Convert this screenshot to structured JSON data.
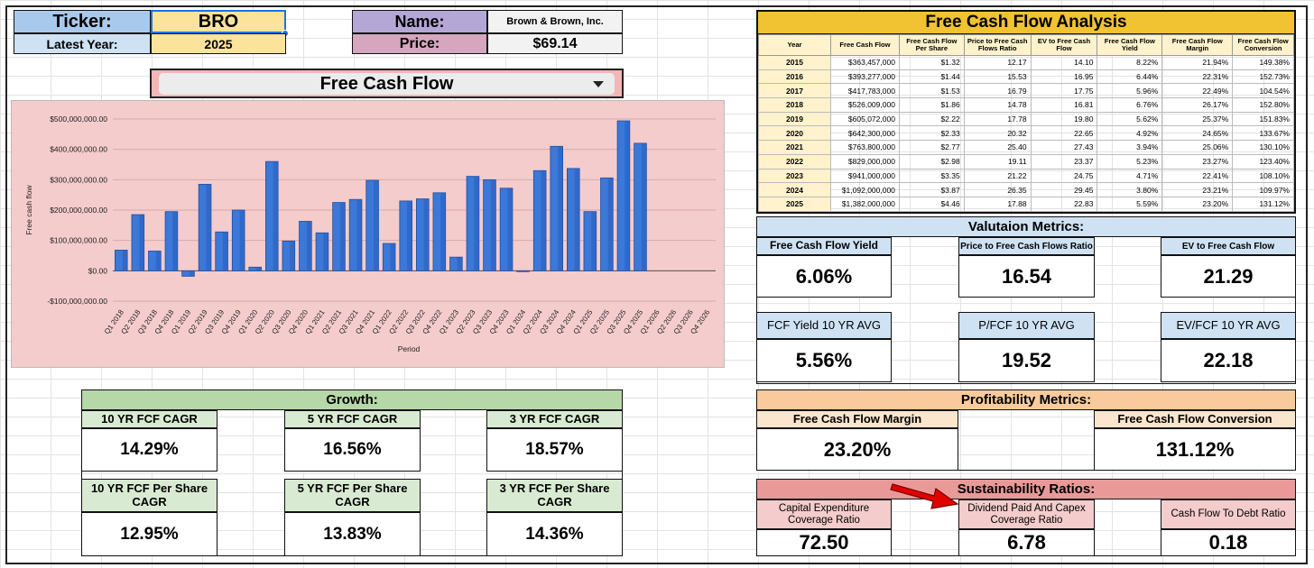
{
  "header": {
    "ticker_label": "Ticker:",
    "ticker_value": "BRO",
    "latest_year_label": "Latest Year:",
    "latest_year_value": "2025",
    "name_label": "Name:",
    "name_value": "Brown & Brown, Inc.",
    "price_label": "Price:",
    "price_value": "$69.14"
  },
  "dropdown": {
    "selected": "Free Cash Flow"
  },
  "chart_data": {
    "type": "bar",
    "title": "",
    "xlabel": "Period",
    "ylabel": "Free cash flow",
    "ylim": [
      -100000000,
      500000000
    ],
    "yticks": [
      500000000,
      400000000,
      300000000,
      200000000,
      100000000,
      0,
      -100000000
    ],
    "ytick_labels": [
      "$500,000,000.00",
      "$400,000,000.00",
      "$300,000,000.00",
      "$200,000,000.00",
      "$100,000,000.00",
      "$0.00",
      "-$100,000,000.00"
    ],
    "categories": [
      "Q1 2018",
      "Q2 2018",
      "Q3 2018",
      "Q4 2018",
      "Q1 2019",
      "Q2 2019",
      "Q3 2019",
      "Q4 2019",
      "Q1 2020",
      "Q2 2020",
      "Q3 2020",
      "Q4 2020",
      "Q1 2021",
      "Q2 2021",
      "Q3 2021",
      "Q4 2021",
      "Q1 2022",
      "Q2 2022",
      "Q3 2022",
      "Q4 2022",
      "Q1 2023",
      "Q2 2023",
      "Q3 2023",
      "Q4 2023",
      "Q1 2024",
      "Q2 2024",
      "Q3 2024",
      "Q4 2024",
      "Q1 2025",
      "Q2 2025",
      "Q3 2025",
      "Q4 2025",
      "Q1 2026",
      "Q2 2026",
      "Q3 2026",
      "Q4 2026"
    ],
    "values": [
      68000000,
      185000000,
      65000000,
      195000000,
      -18000000,
      285000000,
      128000000,
      200000000,
      12000000,
      360000000,
      98000000,
      163000000,
      125000000,
      225000000,
      235000000,
      298000000,
      90000000,
      230000000,
      237000000,
      257000000,
      45000000,
      311000000,
      300000000,
      272000000,
      0,
      330000000,
      410000000,
      337000000,
      195000000,
      306000000,
      494000000,
      420000000,
      null,
      null,
      null,
      null
    ],
    "bar_color": "#3c78d8"
  },
  "fcf_table": {
    "title": "Free Cash Flow Analysis",
    "headers": [
      "Year",
      "Free Cash Flow",
      "Free Cash Flow Per Share",
      "Price to Free Cash Flows Ratio",
      "EV to Free Cash Flow",
      "Free Cash Flow Yield",
      "Free Cash Flow Margin",
      "Free Cash Flow Conversion"
    ],
    "rows": [
      [
        "2015",
        "$363,457,000",
        "$1.32",
        "12.17",
        "14.10",
        "8.22%",
        "21.94%",
        "149.38%"
      ],
      [
        "2016",
        "$393,277,000",
        "$1.44",
        "15.53",
        "16.95",
        "6.44%",
        "22.31%",
        "152.73%"
      ],
      [
        "2017",
        "$417,783,000",
        "$1.53",
        "16.79",
        "17.75",
        "5.96%",
        "22.49%",
        "104.54%"
      ],
      [
        "2018",
        "$526,009,000",
        "$1.86",
        "14.78",
        "16.81",
        "6.76%",
        "26.17%",
        "152.80%"
      ],
      [
        "2019",
        "$605,072,000",
        "$2.22",
        "17.78",
        "19.80",
        "5.62%",
        "25.37%",
        "151.83%"
      ],
      [
        "2020",
        "$642,300,000",
        "$2.33",
        "20.32",
        "22.65",
        "4.92%",
        "24.65%",
        "133.67%"
      ],
      [
        "2021",
        "$763,800,000",
        "$2.77",
        "25.40",
        "27.43",
        "3.94%",
        "25.06%",
        "130.10%"
      ],
      [
        "2022",
        "$829,000,000",
        "$2.98",
        "19.11",
        "23.37",
        "5.23%",
        "23.27%",
        "123.40%"
      ],
      [
        "2023",
        "$941,000,000",
        "$3.35",
        "21.22",
        "24.75",
        "4.71%",
        "22.41%",
        "108.10%"
      ],
      [
        "2024",
        "$1,092,000,000",
        "$3.87",
        "26.35",
        "29.45",
        "3.80%",
        "23.21%",
        "109.97%"
      ],
      [
        "2025",
        "$1,382,000,000",
        "$4.46",
        "17.88",
        "22.83",
        "5.59%",
        "23.20%",
        "131.12%"
      ]
    ]
  },
  "valuation": {
    "title": "Valutaion Metrics:",
    "fcf_yield_label": "Free Cash Flow Yield",
    "fcf_yield_value": "6.06%",
    "p_fcf_label": "Price to Free Cash Flows Ratio",
    "p_fcf_value": "16.54",
    "ev_fcf_label": "EV to Free Cash Flow",
    "ev_fcf_value": "21.29",
    "fcf_yield_avg_label": "FCF Yield 10 YR AVG",
    "fcf_yield_avg_value": "5.56%",
    "p_fcf_avg_label": "P/FCF 10 YR AVG",
    "p_fcf_avg_value": "19.52",
    "ev_fcf_avg_label": "EV/FCF 10 YR AVG",
    "ev_fcf_avg_value": "22.18"
  },
  "growth": {
    "title": "Growth:",
    "cagr10_label": "10 YR FCF CAGR",
    "cagr10_value": "14.29%",
    "cagr5_label": "5 YR FCF CAGR",
    "cagr5_value": "16.56%",
    "cagr3_label": "3 YR FCF CAGR",
    "cagr3_value": "18.57%",
    "ps10_label": "10 YR FCF Per Share CAGR",
    "ps10_value": "12.95%",
    "ps5_label": "5 YR FCF Per Share CAGR",
    "ps5_value": "13.83%",
    "ps3_label": "3 YR FCF Per Share CAGR",
    "ps3_value": "14.36%"
  },
  "profitability": {
    "title": "Profitability Metrics:",
    "margin_label": "Free Cash Flow Margin",
    "margin_value": "23.20%",
    "conversion_label": "Free Cash Flow Conversion",
    "conversion_value": "131.12%"
  },
  "sustainability": {
    "title": "Sustainability Ratios:",
    "capex_label": "Capital Expenditure Coverage Ratio",
    "capex_value": "72.50",
    "div_capex_label": "Dividend Paid And Capex Coverage Ratio",
    "div_capex_value": "6.78",
    "cf_debt_label": "Cash Flow To Debt Ratio",
    "cf_debt_value": "0.18"
  },
  "colors": {
    "growth_head": "#b6d7a8",
    "growth_sub": "#d9ead3",
    "valuation_head": "#cfe2f3",
    "profit_head": "#f9cb9c",
    "profit_sub": "#fce5cd",
    "sustain_head": "#ea9999",
    "sustain_sub": "#f4cccc",
    "arrow": "#e00000"
  }
}
